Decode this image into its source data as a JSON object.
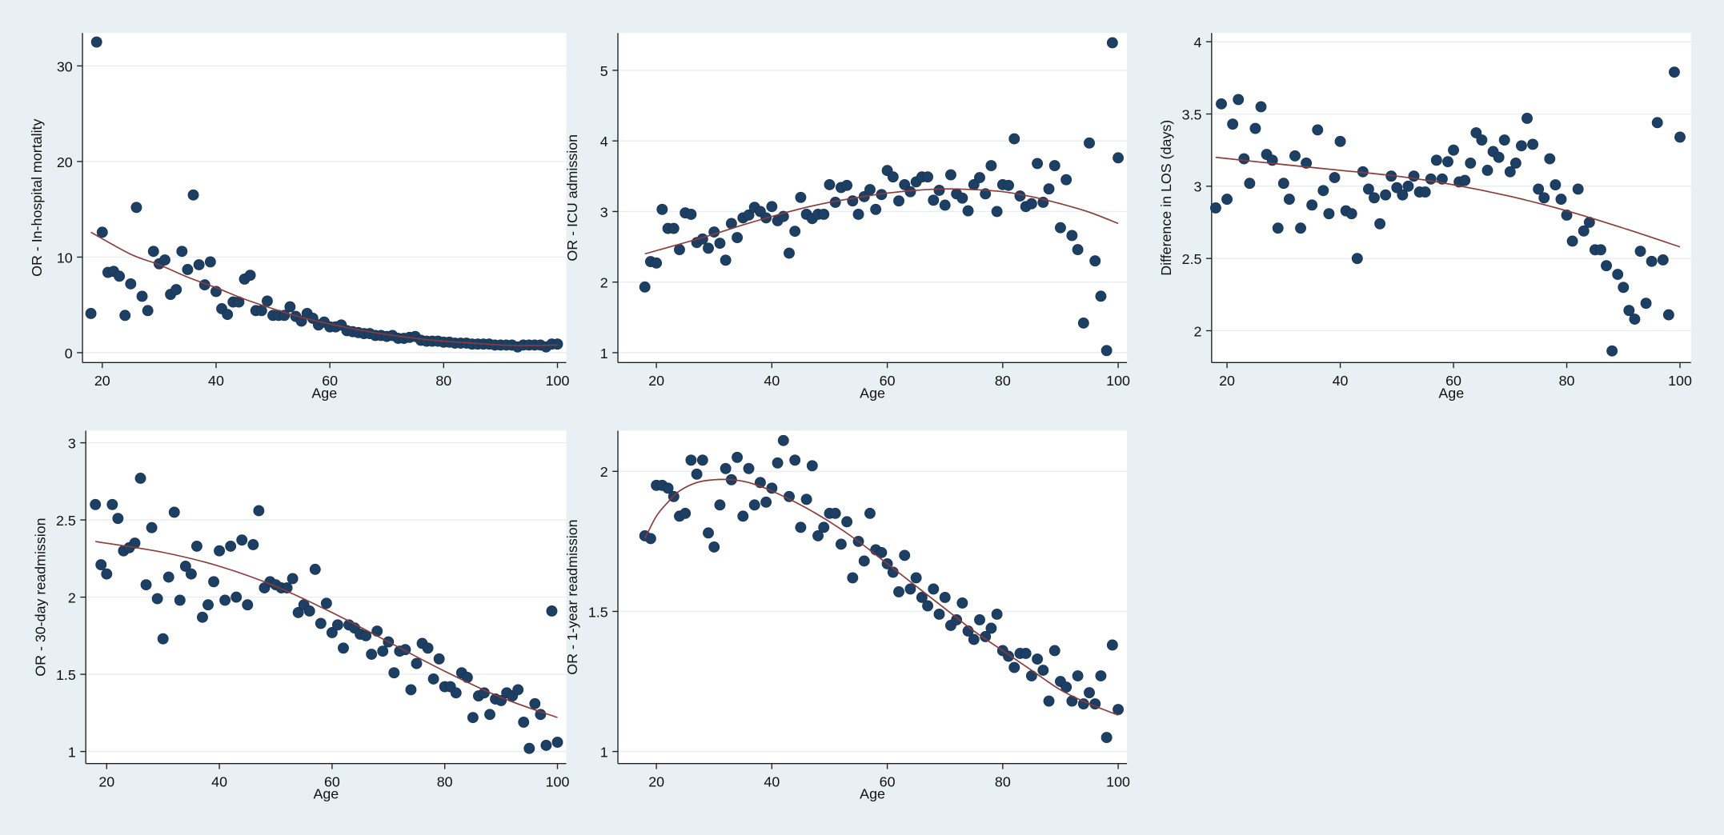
{
  "colors": {
    "background": "#e8f0f3",
    "plot_bg": "#ffffff",
    "marker": "#1d3f63",
    "fit_line": "#8c3a3a"
  },
  "chart_data": [
    {
      "type": "scatter",
      "title": "",
      "xlabel": "Age",
      "ylabel": "OR - In-hospital mortality",
      "xticks": [
        20,
        40,
        60,
        80,
        100
      ],
      "yticks": [
        0,
        10,
        20,
        30
      ],
      "grid": true,
      "x": [
        18,
        19,
        20,
        21,
        22,
        23,
        24,
        25,
        26,
        27,
        28,
        29,
        30,
        31,
        32,
        33,
        34,
        35,
        36,
        37,
        38,
        39,
        40,
        41,
        42,
        43,
        44,
        45,
        46,
        47,
        48,
        49,
        50,
        51,
        52,
        53,
        54,
        55,
        56,
        57,
        58,
        59,
        60,
        61,
        62,
        63,
        64,
        65,
        66,
        67,
        68,
        69,
        70,
        71,
        72,
        73,
        74,
        75,
        76,
        77,
        78,
        79,
        80,
        81,
        82,
        83,
        84,
        85,
        86,
        87,
        88,
        89,
        90,
        91,
        92,
        93,
        94,
        95,
        96,
        97,
        98,
        99,
        100
      ],
      "y": [
        4.1,
        32.5,
        12.6,
        8.4,
        8.5,
        8.0,
        3.9,
        7.2,
        15.2,
        5.9,
        4.4,
        10.6,
        9.3,
        9.7,
        6.1,
        6.6,
        10.6,
        8.7,
        16.5,
        9.2,
        7.1,
        9.5,
        6.4,
        4.6,
        4.0,
        5.3,
        5.3,
        7.7,
        8.1,
        4.4,
        4.4,
        5.4,
        3.9,
        3.9,
        3.9,
        4.8,
        3.8,
        3.3,
        4.1,
        3.6,
        2.9,
        3.2,
        2.7,
        2.7,
        2.9,
        2.3,
        2.2,
        2.1,
        2.0,
        2.0,
        1.8,
        1.8,
        1.7,
        1.8,
        1.5,
        1.5,
        1.6,
        1.7,
        1.3,
        1.2,
        1.2,
        1.2,
        1.1,
        1.1,
        1.0,
        1.0,
        1.0,
        0.9,
        0.9,
        0.9,
        0.9,
        0.8,
        0.8,
        0.8,
        0.8,
        0.6,
        0.8,
        0.8,
        0.8,
        0.8,
        0.6,
        0.9,
        0.9
      ],
      "fit": {
        "x": [
          18,
          25,
          30,
          35,
          40,
          45,
          50,
          55,
          60,
          65,
          70,
          75,
          80,
          85,
          90,
          95,
          100
        ],
        "y": [
          12.6,
          10.3,
          9.2,
          7.9,
          6.8,
          5.6,
          4.6,
          3.7,
          3.0,
          2.4,
          1.9,
          1.5,
          1.2,
          1.0,
          0.8,
          0.75,
          0.8
        ]
      }
    },
    {
      "type": "scatter",
      "title": "",
      "xlabel": "Age",
      "ylabel": "OR - ICU admission",
      "xticks": [
        20,
        40,
        60,
        80,
        100
      ],
      "yticks": [
        1,
        2,
        3,
        4,
        5
      ],
      "grid": true,
      "x": [
        18,
        19,
        20,
        21,
        22,
        23,
        24,
        25,
        26,
        27,
        28,
        29,
        30,
        31,
        32,
        33,
        34,
        35,
        36,
        37,
        38,
        39,
        40,
        41,
        42,
        43,
        44,
        45,
        46,
        47,
        48,
        49,
        50,
        51,
        52,
        53,
        54,
        55,
        56,
        57,
        58,
        59,
        60,
        61,
        62,
        63,
        64,
        65,
        66,
        67,
        68,
        69,
        70,
        71,
        72,
        73,
        74,
        75,
        76,
        77,
        78,
        79,
        80,
        81,
        82,
        83,
        84,
        85,
        86,
        87,
        88,
        89,
        90,
        91,
        92,
        93,
        94,
        95,
        96,
        97,
        98,
        99,
        100
      ],
      "y": [
        1.93,
        2.29,
        2.27,
        3.03,
        2.76,
        2.76,
        2.46,
        2.98,
        2.96,
        2.56,
        2.61,
        2.48,
        2.71,
        2.55,
        2.31,
        2.83,
        2.63,
        2.91,
        2.95,
        3.06,
        3.0,
        2.91,
        3.07,
        2.87,
        2.93,
        2.41,
        2.72,
        3.2,
        2.96,
        2.9,
        2.96,
        2.96,
        3.38,
        3.13,
        3.34,
        3.37,
        3.15,
        2.96,
        3.21,
        3.31,
        3.03,
        3.24,
        3.58,
        3.49,
        3.15,
        3.38,
        3.28,
        3.42,
        3.49,
        3.49,
        3.16,
        3.3,
        3.09,
        3.52,
        3.25,
        3.19,
        3.01,
        3.38,
        3.48,
        3.25,
        3.65,
        3.0,
        3.38,
        3.37,
        4.03,
        3.22,
        3.07,
        3.11,
        3.68,
        3.13,
        3.32,
        3.65,
        2.77,
        3.45,
        2.66,
        2.46,
        1.42,
        3.97,
        2.3,
        1.8,
        1.03,
        5.39,
        3.76
      ],
      "fit": {
        "x": [
          18,
          25,
          30,
          35,
          40,
          45,
          50,
          55,
          60,
          65,
          70,
          75,
          80,
          85,
          90,
          95,
          100
        ],
        "y": [
          2.4,
          2.56,
          2.68,
          2.81,
          2.93,
          3.04,
          3.13,
          3.2,
          3.26,
          3.3,
          3.32,
          3.31,
          3.28,
          3.21,
          3.11,
          2.99,
          2.83
        ]
      }
    },
    {
      "type": "scatter",
      "title": "",
      "xlabel": "Age",
      "ylabel": "Difference in LOS (days)",
      "xticks": [
        20,
        40,
        60,
        80,
        100
      ],
      "yticks": [
        2,
        2.5,
        3,
        3.5,
        4
      ],
      "grid": true,
      "x": [
        18,
        19,
        20,
        21,
        22,
        23,
        24,
        25,
        26,
        27,
        28,
        29,
        30,
        31,
        32,
        33,
        34,
        35,
        36,
        37,
        38,
        39,
        40,
        41,
        42,
        43,
        44,
        45,
        46,
        47,
        48,
        49,
        50,
        51,
        52,
        53,
        54,
        55,
        56,
        57,
        58,
        59,
        60,
        61,
        62,
        63,
        64,
        65,
        66,
        67,
        68,
        69,
        70,
        71,
        72,
        73,
        74,
        75,
        76,
        77,
        78,
        79,
        80,
        81,
        82,
        83,
        84,
        85,
        86,
        87,
        88,
        89,
        90,
        91,
        92,
        93,
        94,
        95,
        96,
        97,
        98,
        99,
        100
      ],
      "y": [
        2.85,
        3.57,
        2.91,
        3.43,
        3.6,
        3.19,
        3.02,
        3.4,
        3.55,
        3.22,
        3.18,
        2.71,
        3.02,
        2.91,
        3.21,
        2.71,
        3.16,
        2.87,
        3.39,
        2.97,
        2.81,
        3.06,
        3.31,
        2.83,
        2.81,
        2.5,
        3.1,
        2.98,
        2.92,
        2.74,
        2.94,
        3.07,
        2.99,
        2.94,
        3.0,
        3.07,
        2.96,
        2.96,
        3.05,
        3.18,
        3.05,
        3.17,
        3.25,
        3.03,
        3.04,
        3.16,
        3.37,
        3.32,
        3.11,
        3.24,
        3.2,
        3.32,
        3.1,
        3.16,
        3.28,
        3.47,
        3.29,
        2.98,
        2.92,
        3.19,
        3.01,
        2.91,
        2.8,
        2.62,
        2.98,
        2.69,
        2.75,
        2.56,
        2.56,
        2.45,
        1.86,
        2.39,
        2.3,
        2.14,
        2.08,
        2.55,
        2.19,
        2.48,
        3.44,
        2.49,
        2.11,
        3.79,
        3.34
      ],
      "fit": {
        "x": [
          18,
          30,
          40,
          50,
          60,
          70,
          80,
          90,
          100
        ],
        "y": [
          3.2,
          3.15,
          3.11,
          3.07,
          3.01,
          2.93,
          2.83,
          2.71,
          2.58
        ]
      }
    },
    {
      "type": "scatter",
      "title": "",
      "xlabel": "Age",
      "ylabel": "OR - 30-day readmission",
      "xticks": [
        20,
        40,
        60,
        80,
        100
      ],
      "yticks": [
        1,
        1.5,
        2,
        2.5,
        3
      ],
      "grid": true,
      "x": [
        18,
        19,
        20,
        21,
        22,
        23,
        24,
        25,
        26,
        27,
        28,
        29,
        30,
        31,
        32,
        33,
        34,
        35,
        36,
        37,
        38,
        39,
        40,
        41,
        42,
        43,
        44,
        45,
        46,
        47,
        48,
        49,
        50,
        51,
        52,
        53,
        54,
        55,
        56,
        57,
        58,
        59,
        60,
        61,
        62,
        63,
        64,
        65,
        66,
        67,
        68,
        69,
        70,
        71,
        72,
        73,
        74,
        75,
        76,
        77,
        78,
        79,
        80,
        81,
        82,
        83,
        84,
        85,
        86,
        87,
        88,
        89,
        90,
        91,
        92,
        93,
        94,
        95,
        96,
        97,
        98,
        99,
        100
      ],
      "y": [
        2.6,
        2.21,
        2.15,
        2.6,
        2.51,
        2.3,
        2.32,
        2.35,
        2.77,
        2.08,
        2.45,
        1.99,
        1.73,
        2.13,
        2.55,
        1.98,
        2.2,
        2.15,
        2.33,
        1.87,
        1.95,
        2.1,
        2.3,
        1.98,
        2.33,
        2.0,
        2.37,
        1.95,
        2.34,
        2.56,
        2.06,
        2.1,
        2.08,
        2.06,
        2.06,
        2.12,
        1.9,
        1.95,
        1.91,
        2.18,
        1.83,
        1.96,
        1.77,
        1.82,
        1.67,
        1.82,
        1.8,
        1.76,
        1.75,
        1.63,
        1.78,
        1.65,
        1.71,
        1.51,
        1.65,
        1.66,
        1.4,
        1.57,
        1.7,
        1.67,
        1.47,
        1.6,
        1.42,
        1.42,
        1.38,
        1.51,
        1.48,
        1.22,
        1.36,
        1.38,
        1.24,
        1.34,
        1.33,
        1.38,
        1.36,
        1.4,
        1.19,
        1.02,
        1.31,
        1.24,
        1.04,
        1.91,
        1.06
      ],
      "fit": {
        "x": [
          18,
          30,
          40,
          50,
          60,
          70,
          80,
          90,
          100
        ],
        "y": [
          2.36,
          2.29,
          2.2,
          2.07,
          1.9,
          1.71,
          1.52,
          1.35,
          1.22
        ]
      }
    },
    {
      "type": "scatter",
      "title": "",
      "xlabel": "Age",
      "ylabel": "OR - 1-year readmission",
      "xticks": [
        20,
        40,
        60,
        80,
        100
      ],
      "yticks": [
        1,
        1.5,
        2
      ],
      "grid": true,
      "x": [
        18,
        19,
        20,
        21,
        22,
        23,
        24,
        25,
        26,
        27,
        28,
        29,
        30,
        31,
        32,
        33,
        34,
        35,
        36,
        37,
        38,
        39,
        40,
        41,
        42,
        43,
        44,
        45,
        46,
        47,
        48,
        49,
        50,
        51,
        52,
        53,
        54,
        55,
        56,
        57,
        58,
        59,
        60,
        61,
        62,
        63,
        64,
        65,
        66,
        67,
        68,
        69,
        70,
        71,
        72,
        73,
        74,
        75,
        76,
        77,
        78,
        79,
        80,
        81,
        82,
        83,
        84,
        85,
        86,
        87,
        88,
        89,
        90,
        91,
        92,
        93,
        94,
        95,
        96,
        97,
        98,
        99,
        100
      ],
      "y": [
        1.77,
        1.76,
        1.95,
        1.95,
        1.94,
        1.91,
        1.84,
        1.85,
        2.04,
        1.99,
        2.04,
        1.78,
        1.73,
        1.88,
        2.01,
        1.97,
        2.05,
        1.84,
        2.01,
        1.88,
        1.96,
        1.89,
        1.94,
        2.03,
        2.11,
        1.91,
        2.04,
        1.8,
        1.9,
        2.02,
        1.77,
        1.8,
        1.85,
        1.85,
        1.74,
        1.82,
        1.62,
        1.75,
        1.68,
        1.85,
        1.72,
        1.71,
        1.67,
        1.64,
        1.57,
        1.7,
        1.58,
        1.62,
        1.55,
        1.52,
        1.58,
        1.49,
        1.55,
        1.45,
        1.47,
        1.53,
        1.43,
        1.4,
        1.47,
        1.41,
        1.44,
        1.49,
        1.36,
        1.34,
        1.3,
        1.35,
        1.35,
        1.27,
        1.33,
        1.29,
        1.18,
        1.36,
        1.25,
        1.23,
        1.18,
        1.27,
        1.17,
        1.21,
        1.17,
        1.27,
        1.05,
        1.38,
        1.15
      ],
      "fit": {
        "x": [
          18,
          20,
          22,
          24,
          27,
          30,
          33,
          36,
          40,
          45,
          50,
          55,
          60,
          65,
          70,
          75,
          80,
          85,
          90,
          95,
          100
        ],
        "y": [
          1.76,
          1.84,
          1.89,
          1.93,
          1.96,
          1.97,
          1.97,
          1.96,
          1.93,
          1.88,
          1.82,
          1.75,
          1.67,
          1.59,
          1.51,
          1.43,
          1.36,
          1.29,
          1.22,
          1.17,
          1.13
        ]
      }
    }
  ]
}
